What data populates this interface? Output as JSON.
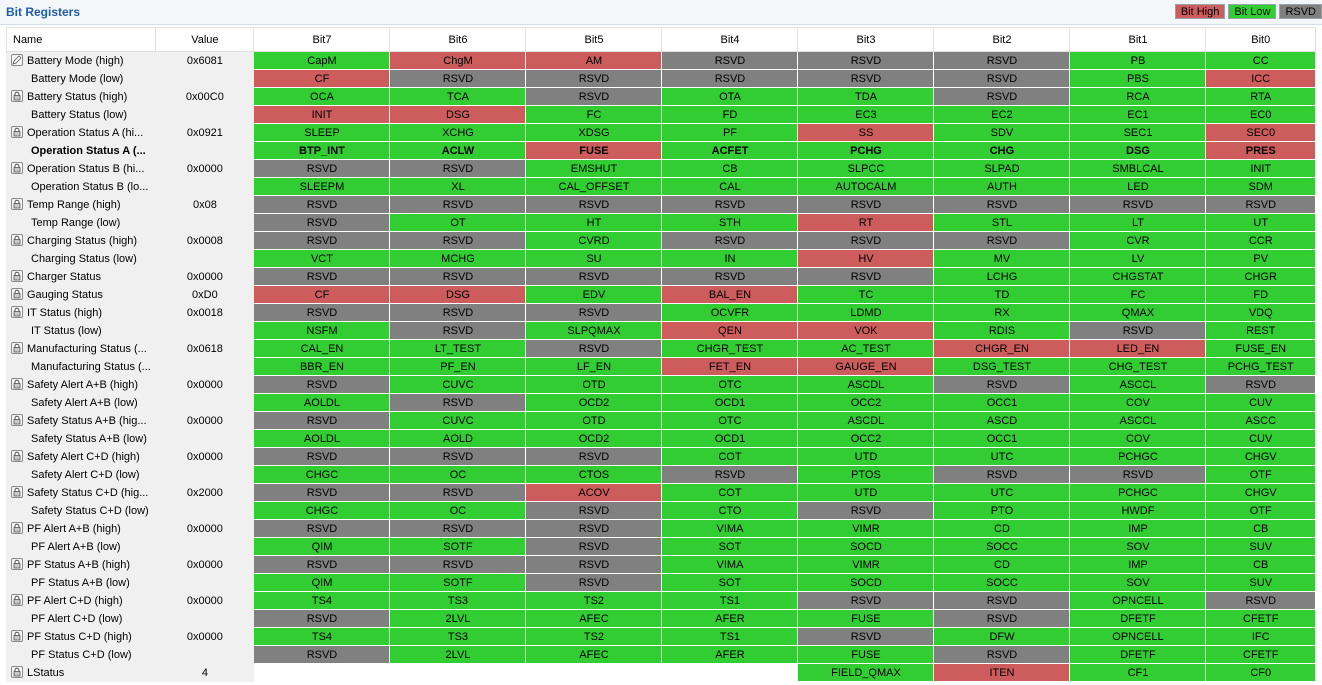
{
  "panel": {
    "title": "Bit Registers"
  },
  "legend": [
    {
      "label": "Bit High",
      "color": "#cd5c5c"
    },
    {
      "label": "Bit Low",
      "color": "#32cd32"
    },
    {
      "label": "RSVD",
      "color": "#808080"
    }
  ],
  "colors": {
    "high": "#cd5c5c",
    "low": "#32cd32",
    "rsvd": "#808080",
    "empty": "#ffffff"
  },
  "columns": [
    "Name",
    "Value",
    "Bit7",
    "Bit6",
    "Bit5",
    "Bit4",
    "Bit3",
    "Bit2",
    "Bit1",
    "Bit0"
  ],
  "rows": [
    {
      "name": "Battery Mode (high)",
      "value": "0x6081",
      "icon": "edit-icon",
      "bits": [
        [
          "CapM",
          "l"
        ],
        [
          "ChgM",
          "h"
        ],
        [
          "AM",
          "h"
        ],
        [
          "RSVD",
          "r"
        ],
        [
          "RSVD",
          "r"
        ],
        [
          "RSVD",
          "r"
        ],
        [
          "PB",
          "l"
        ],
        [
          "CC",
          "l"
        ]
      ]
    },
    {
      "name": "Battery Mode (low)",
      "value": "",
      "bits": [
        [
          "CF",
          "h"
        ],
        [
          "RSVD",
          "r"
        ],
        [
          "RSVD",
          "r"
        ],
        [
          "RSVD",
          "r"
        ],
        [
          "RSVD",
          "r"
        ],
        [
          "RSVD",
          "r"
        ],
        [
          "PBS",
          "l"
        ],
        [
          "ICC",
          "h"
        ]
      ]
    },
    {
      "name": "Battery Status (high)",
      "value": "0x00C0",
      "icon": "lock-icon",
      "bits": [
        [
          "OCA",
          "l"
        ],
        [
          "TCA",
          "l"
        ],
        [
          "RSVD",
          "r"
        ],
        [
          "OTA",
          "l"
        ],
        [
          "TDA",
          "l"
        ],
        [
          "RSVD",
          "r"
        ],
        [
          "RCA",
          "l"
        ],
        [
          "RTA",
          "l"
        ]
      ]
    },
    {
      "name": "Battery Status (low)",
      "value": "",
      "bits": [
        [
          "INIT",
          "h"
        ],
        [
          "DSG",
          "h"
        ],
        [
          "FC",
          "l"
        ],
        [
          "FD",
          "l"
        ],
        [
          "EC3",
          "l"
        ],
        [
          "EC2",
          "l"
        ],
        [
          "EC1",
          "l"
        ],
        [
          "EC0",
          "l"
        ]
      ]
    },
    {
      "name": "Operation Status A (hi...",
      "value": "0x0921",
      "icon": "lock-icon",
      "bits": [
        [
          "SLEEP",
          "l"
        ],
        [
          "XCHG",
          "l"
        ],
        [
          "XDSG",
          "l"
        ],
        [
          "PF",
          "l"
        ],
        [
          "SS",
          "h"
        ],
        [
          "SDV",
          "l"
        ],
        [
          "SEC1",
          "l"
        ],
        [
          "SEC0",
          "h"
        ]
      ]
    },
    {
      "name": "Operation Status A (...",
      "value": "",
      "bold": true,
      "bits": [
        [
          "BTP_INT",
          "l"
        ],
        [
          "ACLW",
          "l"
        ],
        [
          "FUSE",
          "h"
        ],
        [
          "ACFET",
          "l"
        ],
        [
          "PCHG",
          "l"
        ],
        [
          "CHG",
          "l"
        ],
        [
          "DSG",
          "l"
        ],
        [
          "PRES",
          "h"
        ]
      ]
    },
    {
      "name": "Operation Status B (hi...",
      "value": "0x0000",
      "icon": "lock-icon",
      "bits": [
        [
          "RSVD",
          "r"
        ],
        [
          "RSVD",
          "r"
        ],
        [
          "EMSHUT",
          "l"
        ],
        [
          "CB",
          "l"
        ],
        [
          "SLPCC",
          "l"
        ],
        [
          "SLPAD",
          "l"
        ],
        [
          "SMBLCAL",
          "l"
        ],
        [
          "INIT",
          "l"
        ]
      ]
    },
    {
      "name": "Operation Status B (lo...",
      "value": "",
      "bits": [
        [
          "SLEEPM",
          "l"
        ],
        [
          "XL",
          "l"
        ],
        [
          "CAL_OFFSET",
          "l"
        ],
        [
          "CAL",
          "l"
        ],
        [
          "AUTOCALM",
          "l"
        ],
        [
          "AUTH",
          "l"
        ],
        [
          "LED",
          "l"
        ],
        [
          "SDM",
          "l"
        ]
      ]
    },
    {
      "name": "Temp Range (high)",
      "value": "0x08",
      "icon": "lock-icon",
      "bits": [
        [
          "RSVD",
          "r"
        ],
        [
          "RSVD",
          "r"
        ],
        [
          "RSVD",
          "r"
        ],
        [
          "RSVD",
          "r"
        ],
        [
          "RSVD",
          "r"
        ],
        [
          "RSVD",
          "r"
        ],
        [
          "RSVD",
          "r"
        ],
        [
          "RSVD",
          "r"
        ]
      ]
    },
    {
      "name": "Temp Range (low)",
      "value": "",
      "bits": [
        [
          "RSVD",
          "r"
        ],
        [
          "OT",
          "l"
        ],
        [
          "HT",
          "l"
        ],
        [
          "STH",
          "l"
        ],
        [
          "RT",
          "h"
        ],
        [
          "STL",
          "l"
        ],
        [
          "LT",
          "l"
        ],
        [
          "UT",
          "l"
        ]
      ]
    },
    {
      "name": "Charging Status (high)",
      "value": "0x0008",
      "icon": "lock-icon",
      "bits": [
        [
          "RSVD",
          "r"
        ],
        [
          "RSVD",
          "r"
        ],
        [
          "CVRD",
          "l"
        ],
        [
          "RSVD",
          "r"
        ],
        [
          "RSVD",
          "r"
        ],
        [
          "RSVD",
          "r"
        ],
        [
          "CVR",
          "l"
        ],
        [
          "CCR",
          "l"
        ]
      ]
    },
    {
      "name": "Charging Status (low)",
      "value": "",
      "bits": [
        [
          "VCT",
          "l"
        ],
        [
          "MCHG",
          "l"
        ],
        [
          "SU",
          "l"
        ],
        [
          "IN",
          "l"
        ],
        [
          "HV",
          "h"
        ],
        [
          "MV",
          "l"
        ],
        [
          "LV",
          "l"
        ],
        [
          "PV",
          "l"
        ]
      ]
    },
    {
      "name": "Charger Status",
      "value": "0x0000",
      "icon": "lock-icon",
      "bits": [
        [
          "RSVD",
          "r"
        ],
        [
          "RSVD",
          "r"
        ],
        [
          "RSVD",
          "r"
        ],
        [
          "RSVD",
          "r"
        ],
        [
          "RSVD",
          "r"
        ],
        [
          "LCHG",
          "l"
        ],
        [
          "CHGSTAT",
          "l"
        ],
        [
          "CHGR",
          "l"
        ]
      ]
    },
    {
      "name": "Gauging Status",
      "value": "0xD0",
      "icon": "lock-icon",
      "bits": [
        [
          "CF",
          "h"
        ],
        [
          "DSG",
          "h"
        ],
        [
          "EDV",
          "l"
        ],
        [
          "BAL_EN",
          "h"
        ],
        [
          "TC",
          "l"
        ],
        [
          "TD",
          "l"
        ],
        [
          "FC",
          "l"
        ],
        [
          "FD",
          "l"
        ]
      ]
    },
    {
      "name": "IT Status (high)",
      "value": "0x0018",
      "icon": "lock-icon",
      "bits": [
        [
          "RSVD",
          "r"
        ],
        [
          "RSVD",
          "r"
        ],
        [
          "RSVD",
          "r"
        ],
        [
          "OCVFR",
          "l"
        ],
        [
          "LDMD",
          "l"
        ],
        [
          "RX",
          "l"
        ],
        [
          "QMAX",
          "l"
        ],
        [
          "VDQ",
          "l"
        ]
      ]
    },
    {
      "name": "IT Status (low)",
      "value": "",
      "bits": [
        [
          "NSFM",
          "l"
        ],
        [
          "RSVD",
          "r"
        ],
        [
          "SLPQMAX",
          "l"
        ],
        [
          "QEN",
          "h"
        ],
        [
          "VOK",
          "h"
        ],
        [
          "RDIS",
          "l"
        ],
        [
          "RSVD",
          "r"
        ],
        [
          "REST",
          "l"
        ]
      ]
    },
    {
      "name": "Manufacturing Status (...",
      "value": "0x0618",
      "icon": "lock-icon",
      "bits": [
        [
          "CAL_EN",
          "l"
        ],
        [
          "LT_TEST",
          "l"
        ],
        [
          "RSVD",
          "r"
        ],
        [
          "CHGR_TEST",
          "l"
        ],
        [
          "AC_TEST",
          "l"
        ],
        [
          "CHGR_EN",
          "h"
        ],
        [
          "LED_EN",
          "h"
        ],
        [
          "FUSE_EN",
          "l"
        ]
      ]
    },
    {
      "name": "Manufacturing Status (...",
      "value": "",
      "bits": [
        [
          "BBR_EN",
          "l"
        ],
        [
          "PF_EN",
          "l"
        ],
        [
          "LF_EN",
          "l"
        ],
        [
          "FET_EN",
          "h"
        ],
        [
          "GAUGE_EN",
          "h"
        ],
        [
          "DSG_TEST",
          "l"
        ],
        [
          "CHG_TEST",
          "l"
        ],
        [
          "PCHG_TEST",
          "l"
        ]
      ]
    },
    {
      "name": "Safety Alert A+B (high)",
      "value": "0x0000",
      "icon": "lock-icon",
      "bits": [
        [
          "RSVD",
          "r"
        ],
        [
          "CUVC",
          "l"
        ],
        [
          "OTD",
          "l"
        ],
        [
          "OTC",
          "l"
        ],
        [
          "ASCDL",
          "l"
        ],
        [
          "RSVD",
          "r"
        ],
        [
          "ASCCL",
          "l"
        ],
        [
          "RSVD",
          "r"
        ]
      ]
    },
    {
      "name": "Safety Alert A+B (low)",
      "value": "",
      "bits": [
        [
          "AOLDL",
          "l"
        ],
        [
          "RSVD",
          "r"
        ],
        [
          "OCD2",
          "l"
        ],
        [
          "OCD1",
          "l"
        ],
        [
          "OCC2",
          "l"
        ],
        [
          "OCC1",
          "l"
        ],
        [
          "COV",
          "l"
        ],
        [
          "CUV",
          "l"
        ]
      ]
    },
    {
      "name": "Safety Status A+B (hig...",
      "value": "0x0000",
      "icon": "lock-icon",
      "bits": [
        [
          "RSVD",
          "r"
        ],
        [
          "CUVC",
          "l"
        ],
        [
          "OTD",
          "l"
        ],
        [
          "OTC",
          "l"
        ],
        [
          "ASCDL",
          "l"
        ],
        [
          "ASCD",
          "l"
        ],
        [
          "ASCCL",
          "l"
        ],
        [
          "ASCC",
          "l"
        ]
      ]
    },
    {
      "name": "Safety Status A+B (low)",
      "value": "",
      "bits": [
        [
          "AOLDL",
          "l"
        ],
        [
          "AOLD",
          "l"
        ],
        [
          "OCD2",
          "l"
        ],
        [
          "OCD1",
          "l"
        ],
        [
          "OCC2",
          "l"
        ],
        [
          "OCC1",
          "l"
        ],
        [
          "COV",
          "l"
        ],
        [
          "CUV",
          "l"
        ]
      ]
    },
    {
      "name": "Safety Alert C+D (high)",
      "value": "0x0000",
      "icon": "lock-icon",
      "bits": [
        [
          "RSVD",
          "r"
        ],
        [
          "RSVD",
          "r"
        ],
        [
          "RSVD",
          "r"
        ],
        [
          "COT",
          "l"
        ],
        [
          "UTD",
          "l"
        ],
        [
          "UTC",
          "l"
        ],
        [
          "PCHGC",
          "l"
        ],
        [
          "CHGV",
          "l"
        ]
      ]
    },
    {
      "name": "Safety Alert C+D (low)",
      "value": "",
      "bits": [
        [
          "CHGC",
          "l"
        ],
        [
          "OC",
          "l"
        ],
        [
          "CTOS",
          "l"
        ],
        [
          "RSVD",
          "r"
        ],
        [
          "PTOS",
          "l"
        ],
        [
          "RSVD",
          "r"
        ],
        [
          "RSVD",
          "r"
        ],
        [
          "OTF",
          "l"
        ]
      ]
    },
    {
      "name": "Safety Status C+D (hig...",
      "value": "0x2000",
      "icon": "lock-icon",
      "bits": [
        [
          "RSVD",
          "r"
        ],
        [
          "RSVD",
          "r"
        ],
        [
          "ACOV",
          "h"
        ],
        [
          "COT",
          "l"
        ],
        [
          "UTD",
          "l"
        ],
        [
          "UTC",
          "l"
        ],
        [
          "PCHGC",
          "l"
        ],
        [
          "CHGV",
          "l"
        ]
      ]
    },
    {
      "name": "Safety Status C+D (low)",
      "value": "",
      "bits": [
        [
          "CHGC",
          "l"
        ],
        [
          "OC",
          "l"
        ],
        [
          "RSVD",
          "r"
        ],
        [
          "CTO",
          "l"
        ],
        [
          "RSVD",
          "r"
        ],
        [
          "PTO",
          "l"
        ],
        [
          "HWDF",
          "l"
        ],
        [
          "OTF",
          "l"
        ]
      ]
    },
    {
      "name": "PF Alert A+B (high)",
      "value": "0x0000",
      "icon": "lock-icon",
      "bits": [
        [
          "RSVD",
          "r"
        ],
        [
          "RSVD",
          "r"
        ],
        [
          "RSVD",
          "r"
        ],
        [
          "VIMA",
          "l"
        ],
        [
          "VIMR",
          "l"
        ],
        [
          "CD",
          "l"
        ],
        [
          "IMP",
          "l"
        ],
        [
          "CB",
          "l"
        ]
      ]
    },
    {
      "name": "PF Alert A+B (low)",
      "value": "",
      "bits": [
        [
          "QIM",
          "l"
        ],
        [
          "SOTF",
          "l"
        ],
        [
          "RSVD",
          "r"
        ],
        [
          "SOT",
          "l"
        ],
        [
          "SOCD",
          "l"
        ],
        [
          "SOCC",
          "l"
        ],
        [
          "SOV",
          "l"
        ],
        [
          "SUV",
          "l"
        ]
      ]
    },
    {
      "name": "PF Status A+B (high)",
      "value": "0x0000",
      "icon": "lock-icon",
      "bits": [
        [
          "RSVD",
          "r"
        ],
        [
          "RSVD",
          "r"
        ],
        [
          "RSVD",
          "r"
        ],
        [
          "VIMA",
          "l"
        ],
        [
          "VIMR",
          "l"
        ],
        [
          "CD",
          "l"
        ],
        [
          "IMP",
          "l"
        ],
        [
          "CB",
          "l"
        ]
      ]
    },
    {
      "name": "PF Status A+B (low)",
      "value": "",
      "bits": [
        [
          "QIM",
          "l"
        ],
        [
          "SOTF",
          "l"
        ],
        [
          "RSVD",
          "r"
        ],
        [
          "SOT",
          "l"
        ],
        [
          "SOCD",
          "l"
        ],
        [
          "SOCC",
          "l"
        ],
        [
          "SOV",
          "l"
        ],
        [
          "SUV",
          "l"
        ]
      ]
    },
    {
      "name": "PF Alert C+D (high)",
      "value": "0x0000",
      "icon": "lock-icon",
      "bits": [
        [
          "TS4",
          "l"
        ],
        [
          "TS3",
          "l"
        ],
        [
          "TS2",
          "l"
        ],
        [
          "TS1",
          "l"
        ],
        [
          "RSVD",
          "r"
        ],
        [
          "RSVD",
          "r"
        ],
        [
          "OPNCELL",
          "l"
        ],
        [
          "RSVD",
          "r"
        ]
      ]
    },
    {
      "name": "PF Alert C+D (low)",
      "value": "",
      "bits": [
        [
          "RSVD",
          "r"
        ],
        [
          "2LVL",
          "l"
        ],
        [
          "AFEC",
          "l"
        ],
        [
          "AFER",
          "l"
        ],
        [
          "FUSE",
          "l"
        ],
        [
          "RSVD",
          "r"
        ],
        [
          "DFETF",
          "l"
        ],
        [
          "CFETF",
          "l"
        ]
      ]
    },
    {
      "name": "PF Status C+D (high)",
      "value": "0x0000",
      "icon": "lock-icon",
      "bits": [
        [
          "TS4",
          "l"
        ],
        [
          "TS3",
          "l"
        ],
        [
          "TS2",
          "l"
        ],
        [
          "TS1",
          "l"
        ],
        [
          "RSVD",
          "r"
        ],
        [
          "DFW",
          "l"
        ],
        [
          "OPNCELL",
          "l"
        ],
        [
          "IFC",
          "l"
        ]
      ]
    },
    {
      "name": "PF Status C+D (low)",
      "value": "",
      "bits": [
        [
          "RSVD",
          "r"
        ],
        [
          "2LVL",
          "l"
        ],
        [
          "AFEC",
          "l"
        ],
        [
          "AFER",
          "l"
        ],
        [
          "FUSE",
          "l"
        ],
        [
          "RSVD",
          "r"
        ],
        [
          "DFETF",
          "l"
        ],
        [
          "CFETF",
          "l"
        ]
      ]
    },
    {
      "name": "LStatus",
      "value": "4",
      "icon": "lock-icon",
      "bits": [
        [
          "",
          "e"
        ],
        [
          "",
          "e"
        ],
        [
          "",
          "e"
        ],
        [
          "",
          "e"
        ],
        [
          "FIELD_QMAX",
          "l"
        ],
        [
          "ITEN",
          "h"
        ],
        [
          "CF1",
          "l"
        ],
        [
          "CF0",
          "l"
        ]
      ]
    }
  ]
}
